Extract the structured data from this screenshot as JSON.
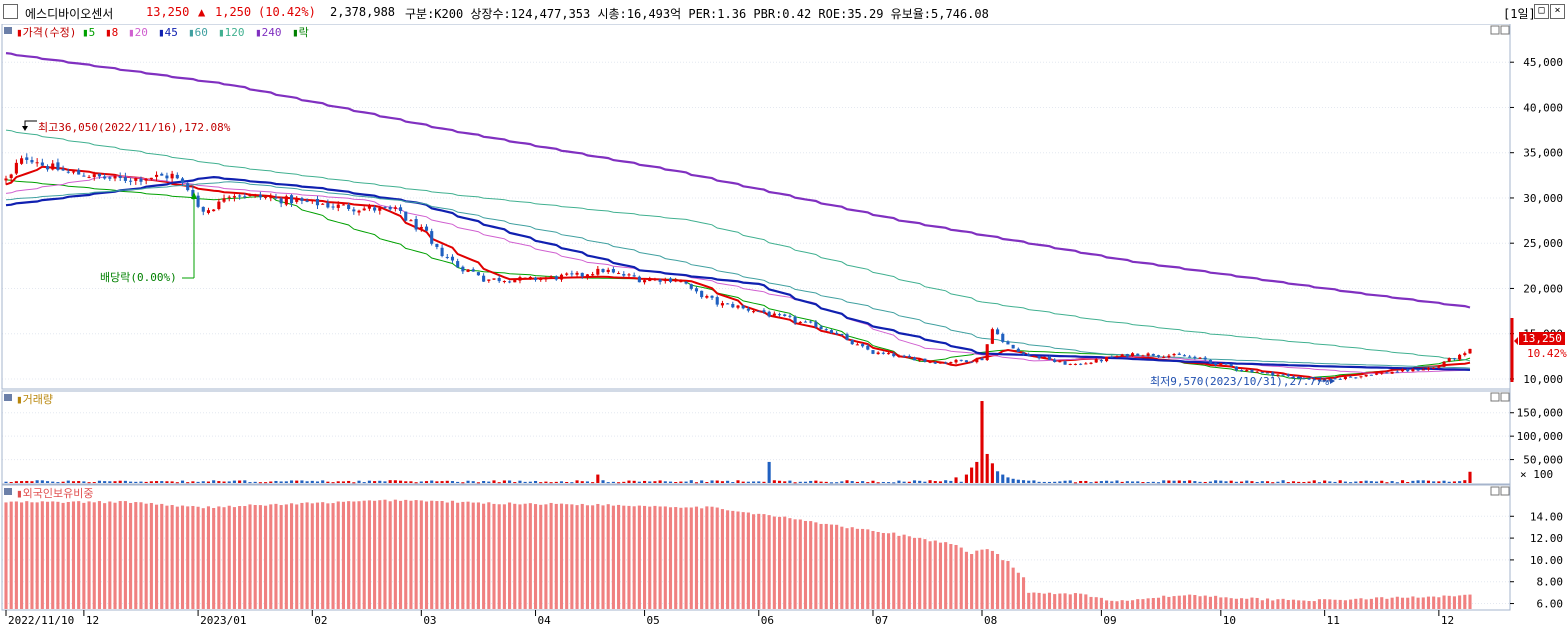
{
  "header": {
    "name": "에스디바이오센서",
    "price": "13,250",
    "change_arrow": "▲",
    "change": "1,250",
    "change_pct": "(10.42%)",
    "volume": "2,378,988",
    "info": "구분:K200 상장수:124,477,353 시총:16,493억 PER:1.36 PBR:0.42 ROE:35.29 유보율:5,746.08",
    "period": "[1일]"
  },
  "legend": {
    "price": "가격(수정)",
    "items": [
      {
        "label": "5",
        "color": "#00a000"
      },
      {
        "label": "8",
        "color": "#e00000"
      },
      {
        "label": "20",
        "color": "#d060d0"
      },
      {
        "label": "45",
        "color": "#1020b0"
      },
      {
        "label": "60",
        "color": "#40a0a0"
      },
      {
        "label": "120",
        "color": "#40b090"
      },
      {
        "label": "240",
        "color": "#8030c0"
      },
      {
        "label": "락",
        "color": "#008000"
      }
    ],
    "volume": "거래량",
    "foreign": "외국인보유비중"
  },
  "annotations": {
    "high": "최고36,050(2022/11/16),172.08%",
    "low": "최저9,570(2023/10/31),27.77%",
    "dividend": "배당락(0.00%)",
    "price_tag": "13,250",
    "pct_tag": "10.42%"
  },
  "chart_data": [
    {
      "type": "candlestick",
      "title": "",
      "ylim": [
        9000,
        49000
      ],
      "y_ticks": [
        "45,000",
        "40,000",
        "35,000",
        "30,000",
        "25,000",
        "20,000",
        "15,000",
        "10,000"
      ],
      "y_tick_values": [
        45000,
        40000,
        35000,
        30000,
        25000,
        20000,
        15000,
        10000
      ],
      "x_tick_labels": [
        "2022/11/10",
        "12",
        "2023/01",
        "02",
        "03",
        "04",
        "05",
        "06",
        "07",
        "08",
        "09",
        "10",
        "11",
        "12"
      ],
      "x_tick_dates": [
        "2022-11-10",
        "2022-12-01",
        "2023-01-02",
        "2023-02-01",
        "2023-03-02",
        "2023-04-03",
        "2023-05-02",
        "2023-06-01",
        "2023-07-03",
        "2023-08-01",
        "2023-09-01",
        "2023-10-04",
        "2023-11-01",
        "2023-12-01"
      ],
      "close_anchors": {
        "dates": [
          "2022-11-10",
          "2022-11-16",
          "2022-11-25",
          "2022-12-10",
          "2022-12-26",
          "2023-01-03",
          "2023-01-10",
          "2023-01-20",
          "2023-02-10",
          "2023-02-25",
          "2023-03-03",
          "2023-03-10",
          "2023-03-20",
          "2023-04-01",
          "2023-04-15",
          "2023-04-20",
          "2023-05-01",
          "2023-05-10",
          "2023-05-20",
          "2023-06-01",
          "2023-06-20",
          "2023-07-01",
          "2023-07-20",
          "2023-08-01",
          "2023-08-03",
          "2023-08-10",
          "2023-08-25",
          "2023-09-10",
          "2023-09-25",
          "2023-10-10",
          "2023-10-31",
          "2023-11-15",
          "2023-11-30",
          "2023-12-11"
        ],
        "close": [
          32000,
          34500,
          33000,
          32000,
          32500,
          28500,
          30500,
          30000,
          29000,
          28500,
          26000,
          23000,
          21000,
          21000,
          21500,
          22000,
          21000,
          21000,
          18500,
          17500,
          15500,
          13000,
          11800,
          12200,
          15500,
          13000,
          11500,
          12800,
          12500,
          11000,
          9800,
          10600,
          11200,
          13250
        ]
      },
      "series": [
        {
          "name": "5",
          "dates": [
            "2022-11-10",
            "2023-01-05",
            "2023-01-20",
            "2023-03-15",
            "2023-04-10",
            "2023-05-10",
            "2023-06-15",
            "2023-07-15",
            "2023-08-05",
            "2023-09-10",
            "2023-10-25",
            "2023-11-20",
            "2023-12-11"
          ],
          "values": [
            32000,
            29800,
            30200,
            22000,
            21200,
            21000,
            16500,
            11800,
            13200,
            12600,
            10000,
            11000,
            12300
          ]
        },
        {
          "name": "8",
          "dates": [
            "2022-11-10",
            "2022-11-20",
            "2022-12-20",
            "2023-01-05",
            "2023-01-20",
            "2023-02-20",
            "2023-03-10",
            "2023-03-25",
            "2023-04-20",
            "2023-05-15",
            "2023-06-01",
            "2023-06-20",
            "2023-07-10",
            "2023-07-25",
            "2023-08-08",
            "2023-08-20",
            "2023-09-10",
            "2023-10-10",
            "2023-10-31",
            "2023-11-20",
            "2023-12-11"
          ],
          "values": [
            31500,
            33500,
            32000,
            30800,
            30200,
            29000,
            24500,
            21000,
            21300,
            20800,
            17500,
            15200,
            12500,
            11500,
            13200,
            12000,
            12500,
            11200,
            10000,
            11000,
            11800
          ]
        },
        {
          "name": "20",
          "dates": [
            "2022-11-10",
            "2022-12-10",
            "2023-01-10",
            "2023-02-15",
            "2023-03-15",
            "2023-04-15",
            "2023-05-15",
            "2023-06-15",
            "2023-07-15",
            "2023-08-15",
            "2023-09-15",
            "2023-10-15",
            "2023-11-15",
            "2023-12-11"
          ],
          "values": [
            30500,
            32500,
            31000,
            29800,
            26500,
            23000,
            21200,
            18500,
            13500,
            12000,
            12500,
            11500,
            10600,
            11000
          ]
        },
        {
          "name": "45",
          "dates": [
            "2022-11-10",
            "2022-12-15",
            "2023-01-05",
            "2023-02-05",
            "2023-03-01",
            "2023-04-01",
            "2023-05-01",
            "2023-06-01",
            "2023-07-01",
            "2023-08-01",
            "2023-09-01",
            "2023-10-01",
            "2023-11-01",
            "2023-12-11"
          ],
          "values": [
            29200,
            31000,
            32300,
            31000,
            29500,
            25500,
            22000,
            20500,
            16000,
            12800,
            12400,
            11800,
            11400,
            11000
          ]
        },
        {
          "name": "60",
          "dates": [
            "2022-11-10",
            "2023-01-10",
            "2023-03-01",
            "2023-04-15",
            "2023-06-01",
            "2023-07-01",
            "2023-08-01",
            "2023-09-01",
            "2023-10-01",
            "2023-11-01",
            "2023-12-11"
          ],
          "values": [
            29800,
            31800,
            29500,
            25500,
            21000,
            18000,
            14500,
            12800,
            12200,
            11700,
            11200
          ]
        },
        {
          "name": "120",
          "dates": [
            "2022-11-10",
            "2023-01-10",
            "2023-03-15",
            "2023-05-15",
            "2023-07-01",
            "2023-08-01",
            "2023-09-01",
            "2023-10-01",
            "2023-11-01",
            "2023-12-11"
          ],
          "values": [
            37500,
            33500,
            30200,
            27500,
            22000,
            18500,
            16500,
            15000,
            13800,
            12000
          ]
        },
        {
          "name": "240",
          "dates": [
            "2022-11-10",
            "2023-01-10",
            "2023-03-10",
            "2023-05-10",
            "2023-07-10",
            "2023-09-10",
            "2023-11-10",
            "2023-12-11"
          ],
          "values": [
            46000,
            42500,
            37500,
            33000,
            27500,
            23000,
            19500,
            17900
          ]
        }
      ]
    },
    {
      "type": "bar",
      "title": "",
      "unit": "× 100",
      "ylim": [
        0,
        190000
      ],
      "y_ticks": [
        "150,000",
        "100,000",
        "50,000"
      ],
      "y_tick_values": [
        150000,
        100000,
        50000
      ],
      "base_volume": 3000,
      "spikes": {
        "dates": [
          "2023-04-19",
          "2023-06-05",
          "2023-07-25",
          "2023-07-27",
          "2023-07-28",
          "2023-07-31",
          "2023-08-01",
          "2023-08-02",
          "2023-08-03",
          "2023-08-04",
          "2023-08-07",
          "2023-08-08",
          "2023-08-09",
          "2023-08-10",
          "2023-08-11",
          "2023-12-08",
          "2023-12-11"
        ],
        "values": [
          18000,
          45000,
          12000,
          18000,
          33000,
          45000,
          175000,
          62000,
          42000,
          25000,
          18000,
          12000,
          9000,
          7000,
          6000,
          6000,
          24000
        ]
      }
    },
    {
      "type": "bar",
      "title": "",
      "ylim": [
        5.5,
        16.5
      ],
      "y_ticks": [
        "14.00",
        "12.00",
        "10.00",
        "8.00",
        "6.00"
      ],
      "y_tick_values": [
        14,
        12,
        10,
        8,
        6
      ],
      "anchors": {
        "dates": [
          "2022-11-10",
          "2022-12-15",
          "2023-01-01",
          "2023-02-01",
          "2023-02-25",
          "2023-03-20",
          "2023-04-15",
          "2023-05-20",
          "2023-06-10",
          "2023-06-25",
          "2023-07-10",
          "2023-07-25",
          "2023-07-28",
          "2023-08-02",
          "2023-08-08",
          "2023-08-14",
          "2023-08-28",
          "2023-09-04",
          "2023-09-25",
          "2023-10-15",
          "2023-11-01",
          "2023-12-11"
        ],
        "values": [
          15.3,
          15.3,
          14.8,
          15.2,
          15.5,
          15.2,
          15.1,
          14.8,
          13.8,
          13.0,
          12.3,
          11.3,
          10.5,
          11.0,
          9.8,
          7.0,
          6.9,
          6.2,
          6.8,
          6.4,
          6.3,
          6.8
        ]
      }
    }
  ]
}
